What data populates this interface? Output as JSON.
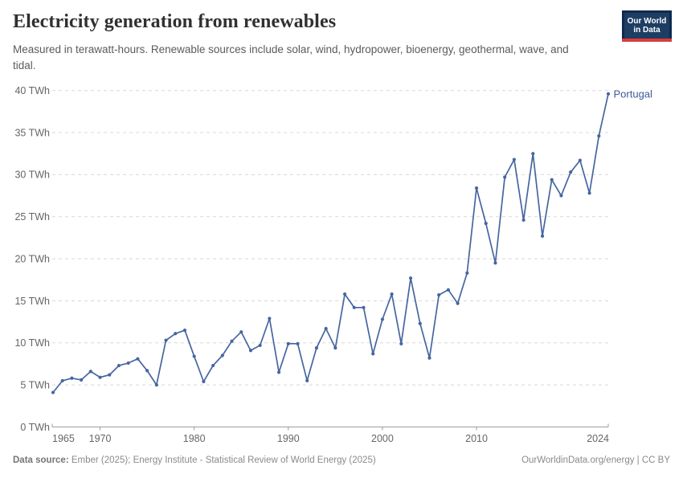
{
  "header": {
    "title": "Electricity generation from renewables",
    "subtitle": "Measured in terawatt-hours. Renewable sources include solar, wind, hydropower, bioenergy, geothermal, wave, and tidal.",
    "logo": {
      "line1": "Our World",
      "line2": "in Data"
    }
  },
  "chart_data": {
    "type": "line",
    "title": "Electricity generation from renewables",
    "unit": "TWh",
    "xlabel": "",
    "ylabel": "TWh",
    "xlim": [
      1965,
      2024
    ],
    "ylim": [
      0,
      40
    ],
    "xticks": [
      1965,
      1970,
      1980,
      1990,
      2000,
      2010,
      2024
    ],
    "yticks": [
      0,
      5,
      10,
      15,
      20,
      25,
      30,
      35,
      40
    ],
    "grid": "horizontal-dashed",
    "legend_position": "end-of-line",
    "series": [
      {
        "name": "Portugal",
        "color": "#4666a0",
        "x": [
          1965,
          1966,
          1967,
          1968,
          1969,
          1970,
          1971,
          1972,
          1973,
          1974,
          1975,
          1976,
          1977,
          1978,
          1979,
          1980,
          1981,
          1982,
          1983,
          1984,
          1985,
          1986,
          1987,
          1988,
          1989,
          1990,
          1991,
          1992,
          1993,
          1994,
          1995,
          1996,
          1997,
          1998,
          1999,
          2000,
          2001,
          2002,
          2003,
          2004,
          2005,
          2006,
          2007,
          2008,
          2009,
          2010,
          2011,
          2012,
          2013,
          2014,
          2015,
          2016,
          2017,
          2018,
          2019,
          2020,
          2021,
          2022,
          2023,
          2024
        ],
        "values": [
          4.1,
          5.5,
          5.8,
          5.6,
          6.6,
          5.9,
          6.2,
          7.3,
          7.6,
          8.1,
          6.7,
          5.0,
          10.3,
          11.1,
          11.5,
          8.4,
          5.4,
          7.3,
          8.5,
          10.2,
          11.3,
          9.1,
          9.7,
          12.9,
          6.5,
          9.9,
          9.9,
          5.5,
          9.4,
          11.7,
          9.4,
          15.8,
          14.2,
          14.2,
          8.7,
          12.8,
          15.8,
          9.9,
          17.7,
          12.3,
          8.2,
          15.7,
          16.3,
          14.7,
          18.3,
          28.4,
          24.2,
          19.5,
          29.7,
          31.8,
          24.6,
          32.5,
          22.7,
          29.4,
          27.5,
          30.3,
          31.7,
          27.8,
          34.6,
          39.6
        ]
      }
    ]
  },
  "footer": {
    "source_label": "Data source:",
    "source_text": " Ember (2025); Energy Institute - Statistical Review of World Energy (2025)",
    "rights": "OurWorldinData.org/energy | CC BY"
  },
  "colors": {
    "line": "#4666a0",
    "series_label": "#3b5b97",
    "gridline": "#d8d8d8",
    "axis": "#9c9c9c",
    "tick_label": "#666666",
    "logo_navy": "#1d3d63",
    "logo_navy_dark": "#0e2a50",
    "logo_red": "#d93d3e"
  }
}
